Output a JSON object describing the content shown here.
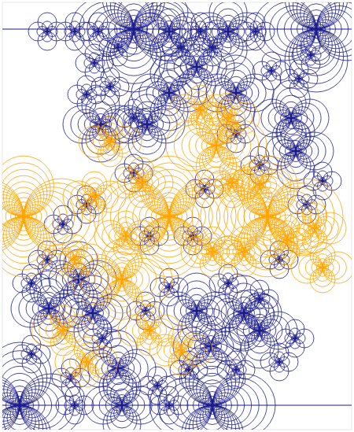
{
  "chart_data": {
    "type": "scatter",
    "tick_labels": false,
    "grid": false,
    "xlim": [
      -0.22,
      4.22
    ],
    "ylim": [
      -0.31,
      5.12
    ],
    "series": [
      {
        "type": "scatter",
        "marker": "rings",
        "color": "#1c1c8a",
        "x": [
          0,
          2.45,
          1.45,
          3.77,
          1.03,
          1.62,
          1.9,
          2.75,
          3.45,
          3.51,
          2.25,
          1.9,
          2.65,
          0.37,
          0.93,
          2.25,
          2.85,
          1.25,
          2.43,
          1.3,
          0.75,
          3.05,
          0.35,
          0.7,
          1.0,
          2.3,
          3.0,
          0.7,
          1.9,
          0.95,
          3.2,
          3.55,
          1.15,
          1.45,
          0.85,
          0.55,
          2.35,
          2.2,
          1.65,
          3.3,
          3.65,
          3.05,
          3.85,
          0.35,
          1.9,
          1.6,
          0.15,
          0.65,
          1.75,
          2.15,
          2.75,
          3.3,
          3.5,
          1.05,
          1.45,
          2.75,
          2.45,
          2.05,
          3.7,
          1.25,
          0.85,
          3.05,
          2.65,
          0.15
        ],
        "values": [
          0,
          0,
          4.78,
          4.78,
          3.57,
          3.57,
          3.97,
          3.97,
          3.65,
          3.23,
          4.3,
          4.75,
          4.75,
          1.23,
          1.17,
          1.2,
          1.17,
          0.47,
          0.75,
          0,
          1.6,
          0.95,
          4.75,
          4.75,
          4.75,
          4.75,
          4.75,
          0,
          0,
          4.35,
          4.25,
          4.15,
          4.05,
          2.95,
          2.55,
          2.3,
          2.75,
          2.15,
          2.15,
          1.85,
          2.55,
          3.05,
          2.85,
          1.85,
          1.5,
          1.2,
          0.65,
          0.35,
          0.25,
          0.45,
          0.45,
          0.55,
          0.85,
          0.85,
          3.65,
          3.45,
          4.55,
          4.55,
          4.45,
          4.55,
          3.95,
          1.35,
          1.55,
          1.55
        ],
        "size": [
          5,
          5,
          5,
          5,
          3,
          3,
          3,
          3,
          3,
          3,
          3,
          3,
          3,
          3,
          3,
          3,
          3,
          3,
          3,
          3,
          3,
          3,
          1.5,
          1.5,
          1.5,
          1.5,
          1.5,
          1.5,
          1.5,
          1.5,
          1.5,
          1.5,
          1.5,
          1.5,
          1.5,
          1.5,
          1.5,
          1.5,
          1.5,
          1.5,
          1.5,
          1.5,
          1.5,
          1.5,
          1.5,
          1.5,
          1.5,
          1.5,
          1.5,
          1.5,
          1.5,
          1.5,
          1.5,
          1.5,
          1.5,
          1.5,
          1.5,
          1.5,
          1.5,
          1.5,
          1.5,
          1.5,
          1.5,
          1.5
        ]
      },
      {
        "type": "scatter",
        "marker": "rings",
        "color": "#ffa500",
        "x": [
          1.9,
          3.15,
          0.05,
          1.3,
          2.5,
          2.3,
          2.65,
          1.55,
          2.7,
          3.05,
          2.45,
          2.85,
          1.35,
          0.85,
          1.65,
          2.05,
          1.15,
          3.4,
          0.7,
          3.75,
          0.95,
          0.55,
          3.85
        ],
        "values": [
          2.4,
          2.4,
          2.4,
          1.6,
          3.3,
          3.75,
          3.65,
          2.83,
          2.83,
          2.8,
          1.95,
          1.95,
          2.15,
          0.55,
          0.95,
          0.7,
          3.35,
          2.1,
          1.85,
          2.25,
          2.65,
          0.95,
          1.75
        ],
        "size": [
          6,
          6,
          6,
          4,
          4,
          2.5,
          2.5,
          2.5,
          2.5,
          2.5,
          2.5,
          2.5,
          2.5,
          2.5,
          2.5,
          2.5,
          2.5,
          2.5,
          2.5,
          2.5,
          2.5,
          2.5,
          2.5
        ]
      },
      {
        "type": "line",
        "line_style": "solid",
        "color": "#1c1c8a",
        "x": [
          -0.22,
          4.22
        ],
        "values": [
          0,
          0
        ]
      },
      {
        "type": "line",
        "line_style": "solid",
        "color": "#1c1c8a",
        "x": [
          -0.22,
          4.22
        ],
        "values": [
          4.78,
          4.78
        ]
      }
    ]
  }
}
